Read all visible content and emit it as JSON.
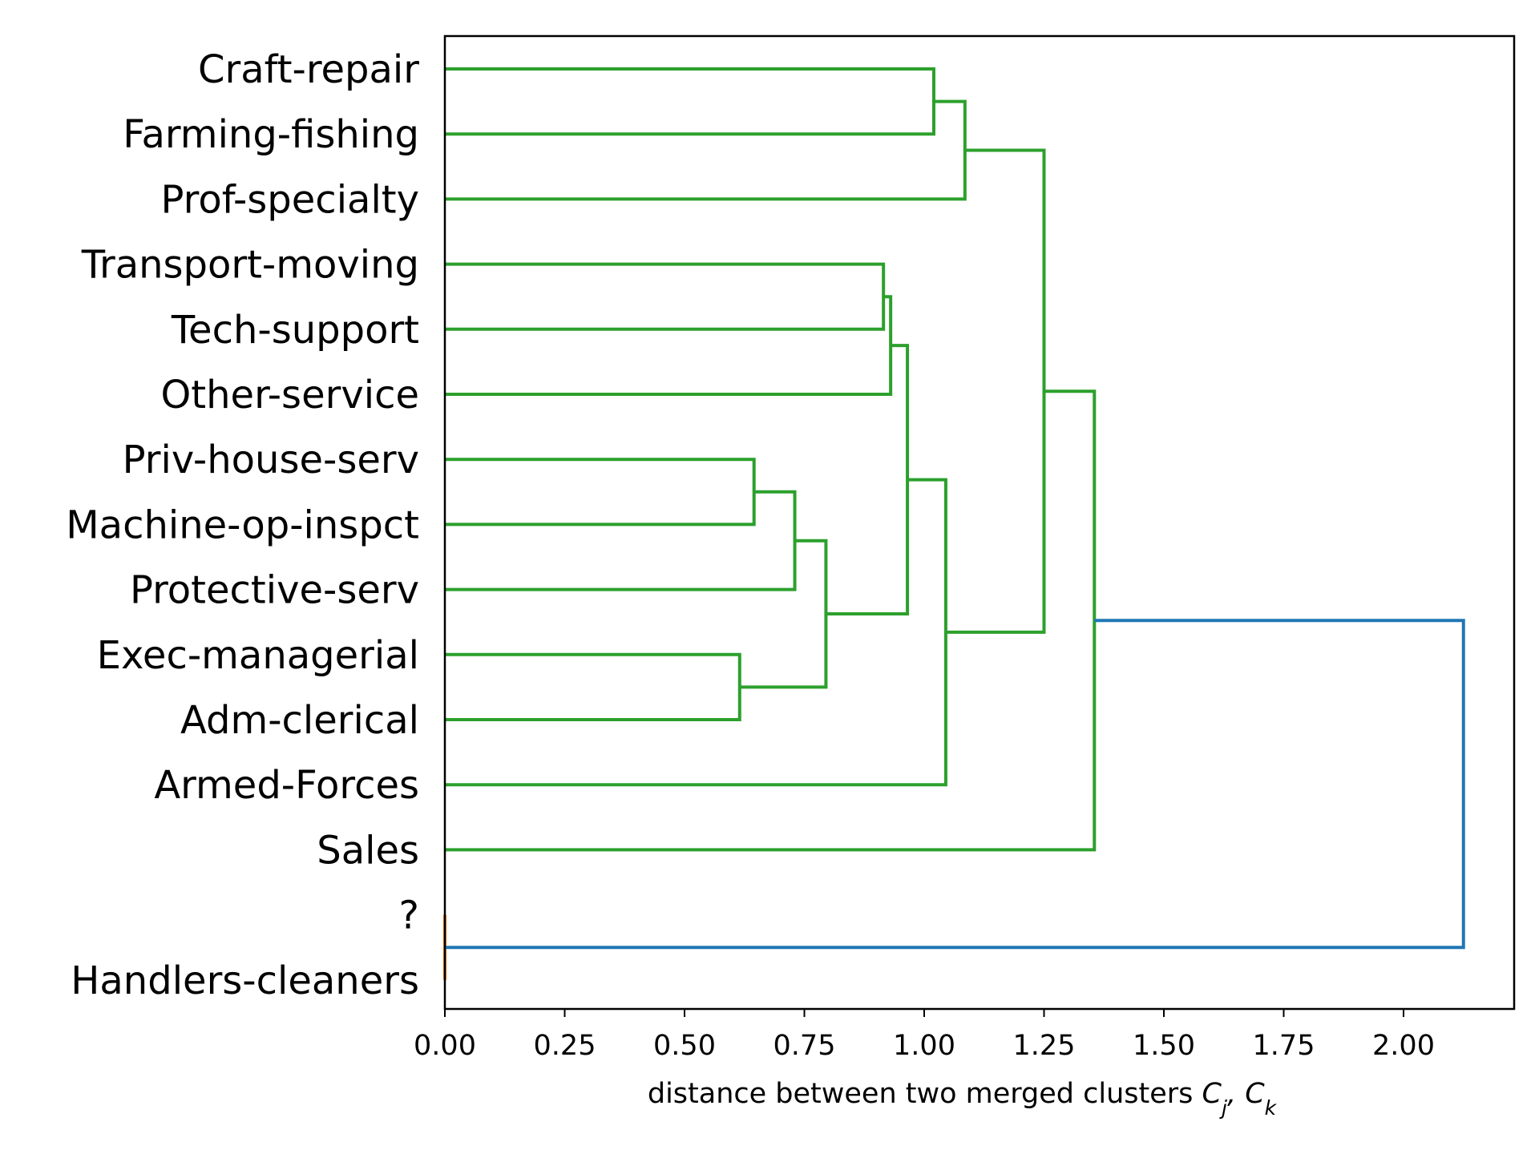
{
  "chart_data": {
    "type": "dendrogram",
    "orientation": "horizontal",
    "xlabel": "distance between two merged clusters ",
    "xlabel_math": "C_j, C_k",
    "xlim": [
      0,
      2.23
    ],
    "xticks": [
      "0.00",
      "0.25",
      "0.50",
      "0.75",
      "1.00",
      "1.25",
      "1.50",
      "1.75",
      "2.00"
    ],
    "xtick_values": [
      0,
      0.25,
      0.5,
      0.75,
      1.0,
      1.25,
      1.5,
      1.75,
      2.0
    ],
    "leaves": [
      "Craft-repair",
      "Farming-fishing",
      "Prof-specialty",
      "Transport-moving",
      "Tech-support",
      "Other-service",
      "Priv-house-serv",
      "Machine-op-inspct",
      "Protective-serv",
      "Exec-managerial",
      "Adm-clerical",
      "Armed-Forces",
      "Sales",
      "?",
      "Handlers-cleaners"
    ],
    "colors": {
      "cluster_a": "#2ca02c",
      "cluster_b": "#ff7f0e",
      "above_threshold": "#1f77b4"
    },
    "merges": [
      {
        "a": "?",
        "b": "Handlers-cleaners",
        "height": 0.0,
        "color": "cluster_b"
      },
      {
        "a": "Exec-managerial",
        "b": "Adm-clerical",
        "height": 0.615,
        "color": "cluster_a"
      },
      {
        "a": "Priv-house-serv",
        "b": "Machine-op-inspct",
        "height": 0.645,
        "color": "cluster_a"
      },
      {
        "a": "m3",
        "b": "Protective-serv",
        "height": 0.73,
        "color": "cluster_a"
      },
      {
        "a": "m4",
        "b": "m2",
        "height": 0.795,
        "color": "cluster_a"
      },
      {
        "a": "Transport-moving",
        "b": "Tech-support",
        "height": 0.915,
        "color": "cluster_a"
      },
      {
        "a": "m6",
        "b": "Other-service",
        "height": 0.93,
        "color": "cluster_a"
      },
      {
        "a": "m7",
        "b": "m5",
        "height": 0.965,
        "color": "cluster_a"
      },
      {
        "a": "Craft-repair",
        "b": "Farming-fishing",
        "height": 1.02,
        "color": "cluster_a"
      },
      {
        "a": "m8",
        "b": "Armed-Forces",
        "height": 1.045,
        "color": "cluster_a"
      },
      {
        "a": "m9",
        "b": "Prof-specialty",
        "height": 1.085,
        "color": "cluster_a"
      },
      {
        "a": "m11",
        "b": "m10",
        "height": 1.25,
        "color": "cluster_a"
      },
      {
        "a": "m12",
        "b": "Sales",
        "height": 1.355,
        "color": "cluster_a"
      },
      {
        "a": "m13",
        "b": "m1",
        "height": 2.125,
        "color": "above_threshold"
      }
    ]
  }
}
